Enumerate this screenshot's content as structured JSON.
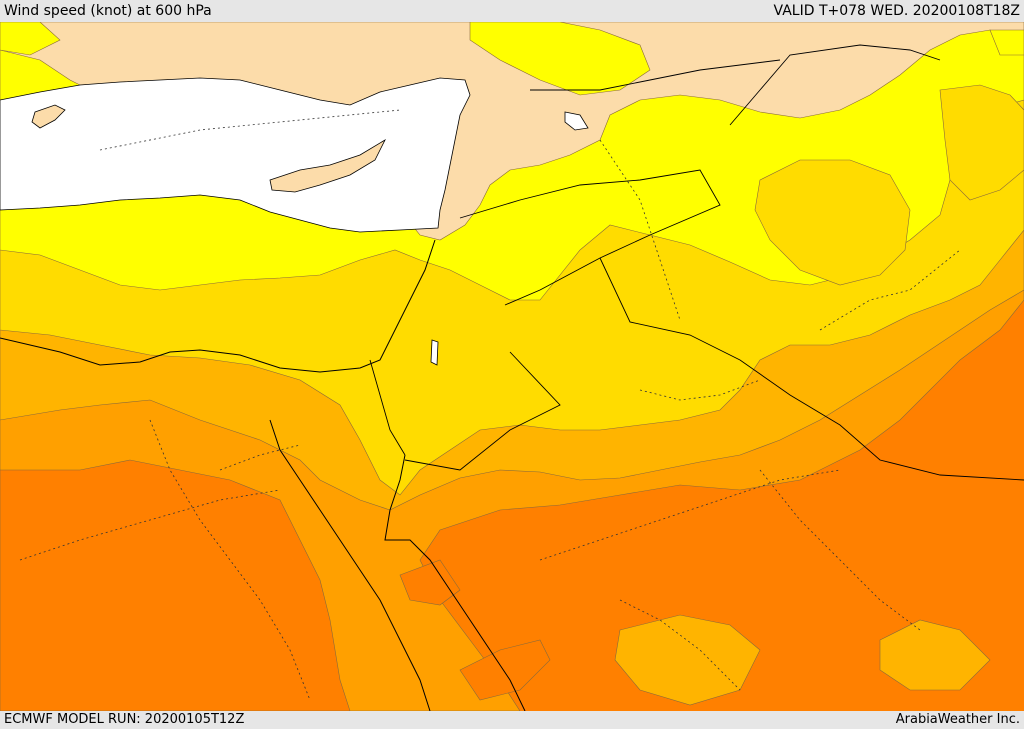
{
  "header": {
    "title": "Wind speed (knot) at 600 hPa",
    "valid": "VALID T+078 WED. 20200108T18Z"
  },
  "footer": {
    "model_run": "ECMWF MODEL RUN: 20200105T12Z",
    "credit": "ArabiaWeather Inc."
  },
  "colors": {
    "sea": "#ffffff",
    "band_lightest": "#fcdcaa",
    "band_yellow": "#ffff00",
    "band_gold": "#ffdc00",
    "band_amber": "#ffb400",
    "band_orange": "#ffa000",
    "band_deep_orange": "#ff8000",
    "coastline": "#000000",
    "border": "#000000"
  }
}
